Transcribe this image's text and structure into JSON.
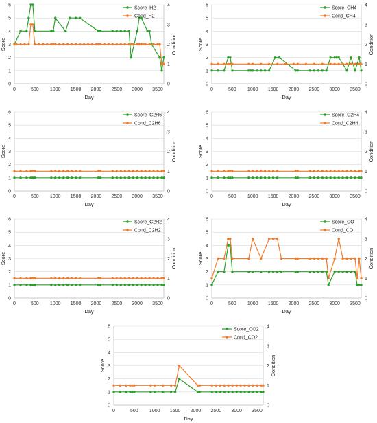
{
  "colors": {
    "score": "#2ca02c",
    "cond": "#f07b2a",
    "grid": "#d9d9d9",
    "axis": "#bfbfbf"
  },
  "chart_data": [
    {
      "type": "line",
      "xlabel": "Day",
      "ylabel": "Score",
      "y2label": "Condition",
      "xlim": [
        0,
        3650
      ],
      "xticks": [
        0,
        500,
        1000,
        1500,
        2000,
        2500,
        3000,
        3500
      ],
      "ylim": [
        0,
        6
      ],
      "y2lim": [
        0,
        4
      ],
      "legend": "top-right",
      "grid": true,
      "series": [
        {
          "name": "Score_H2",
          "axis": "left",
          "color": "#2ca02c",
          "x": [
            0,
            150,
            300,
            350,
            400,
            450,
            500,
            900,
            950,
            1000,
            1250,
            1350,
            1500,
            1600,
            2050,
            2100,
            2400,
            2500,
            2600,
            2700,
            2800,
            2850,
            3000,
            3050,
            3100,
            3250,
            3300,
            3350,
            3550,
            3600,
            3650
          ],
          "y": [
            3,
            4,
            4,
            5,
            6,
            6,
            4,
            4,
            4,
            5,
            4,
            5,
            5,
            5,
            4,
            4,
            4,
            4,
            4,
            4,
            4,
            2,
            4,
            5,
            5,
            4,
            4,
            3,
            2,
            1,
            2
          ]
        },
        {
          "name": "Cond_H2",
          "axis": "right",
          "color": "#f07b2a",
          "x": [
            0,
            50,
            150,
            250,
            350,
            400,
            450,
            500,
            600,
            700,
            800,
            900,
            950,
            1000,
            1100,
            1200,
            1300,
            1400,
            1500,
            1600,
            1700,
            1800,
            1900,
            2000,
            2050,
            2100,
            2200,
            2300,
            2400,
            2500,
            2600,
            2700,
            2800,
            2850,
            2900,
            3000,
            3050,
            3100,
            3150,
            3200,
            3300,
            3400,
            3500,
            3550,
            3600,
            3650
          ],
          "y": [
            2,
            2,
            2,
            2,
            2,
            3,
            3,
            2,
            2,
            2,
            2,
            2,
            2,
            2,
            2,
            2,
            2,
            2,
            2,
            2,
            2,
            2,
            2,
            2,
            2,
            2,
            2,
            2,
            2,
            2,
            2,
            2,
            2,
            2,
            2,
            2,
            2,
            2,
            2,
            2,
            2,
            2,
            2,
            2,
            1,
            1
          ]
        }
      ]
    },
    {
      "type": "line",
      "xlabel": "Day",
      "ylabel": "Score",
      "y2label": "Condition",
      "xlim": [
        0,
        3650
      ],
      "xticks": [
        0,
        500,
        1000,
        1500,
        2000,
        2500,
        3000,
        3500
      ],
      "ylim": [
        0,
        6
      ],
      "y2lim": [
        0,
        4
      ],
      "legend": "top-right",
      "grid": true,
      "series": [
        {
          "name": "Score_CH4",
          "axis": "left",
          "color": "#2ca02c",
          "x": [
            0,
            150,
            300,
            400,
            450,
            500,
            900,
            950,
            1000,
            1100,
            1200,
            1300,
            1400,
            1550,
            1650,
            2050,
            2100,
            2400,
            2500,
            2600,
            2700,
            2800,
            2900,
            3000,
            3050,
            3100,
            3200,
            3300,
            3400,
            3500,
            3550,
            3600,
            3650
          ],
          "y": [
            1,
            1,
            1,
            2,
            2,
            1,
            1,
            1,
            1,
            1,
            1,
            1,
            1,
            2,
            2,
            1,
            1,
            1,
            1,
            1,
            1,
            1,
            2,
            2,
            2,
            2,
            1.5,
            1,
            2,
            1,
            1.5,
            2,
            1
          ]
        },
        {
          "name": "Cond_CH4",
          "axis": "right",
          "color": "#f07b2a",
          "x": [
            0,
            150,
            300,
            400,
            450,
            500,
            900,
            1000,
            1200,
            1400,
            1600,
            1800,
            2000,
            2100,
            2300,
            2500,
            2700,
            2900,
            3000,
            3100,
            3200,
            3300,
            3400,
            3500,
            3600,
            3650
          ],
          "y": [
            1,
            1,
            1,
            1,
            1,
            1,
            1,
            1,
            1,
            1,
            1,
            1,
            1,
            1,
            1,
            1,
            1,
            1,
            1,
            1,
            1,
            1,
            1,
            1,
            1,
            1
          ]
        }
      ]
    },
    {
      "type": "line",
      "xlabel": "Day",
      "ylabel": "Score",
      "y2label": "Condition",
      "xlim": [
        0,
        3650
      ],
      "xticks": [
        0,
        500,
        1000,
        1500,
        2000,
        2500,
        3000,
        3500
      ],
      "ylim": [
        0,
        6
      ],
      "y2lim": [
        0,
        4
      ],
      "legend": "top-right",
      "grid": true,
      "series": [
        {
          "name": "Score_C2H6",
          "axis": "left",
          "color": "#2ca02c",
          "x": [
            0,
            150,
            300,
            400,
            450,
            500,
            900,
            1000,
            1100,
            1200,
            1300,
            1400,
            1500,
            1600,
            2050,
            2100,
            2400,
            2500,
            2600,
            2700,
            2800,
            2900,
            3000,
            3100,
            3200,
            3300,
            3400,
            3500,
            3600,
            3650
          ],
          "y": [
            1,
            1,
            1,
            1,
            1,
            1,
            1,
            1,
            1,
            1,
            1,
            1,
            1,
            1,
            1,
            1,
            1,
            1,
            1,
            1,
            1,
            1,
            1,
            1,
            1,
            1,
            1,
            1,
            1,
            1
          ]
        },
        {
          "name": "Cond_C2H6",
          "axis": "right",
          "color": "#f07b2a",
          "x": [
            0,
            150,
            300,
            400,
            450,
            500,
            900,
            1000,
            1100,
            1200,
            1300,
            1400,
            1500,
            1600,
            2050,
            2100,
            2400,
            2500,
            2600,
            2700,
            2800,
            2900,
            3000,
            3100,
            3200,
            3300,
            3400,
            3500,
            3600,
            3650
          ],
          "y": [
            1,
            1,
            1,
            1,
            1,
            1,
            1,
            1,
            1,
            1,
            1,
            1,
            1,
            1,
            1,
            1,
            1,
            1,
            1,
            1,
            1,
            1,
            1,
            1,
            1,
            1,
            1,
            1,
            1,
            1
          ]
        }
      ]
    },
    {
      "type": "line",
      "xlabel": "Day",
      "ylabel": "Score",
      "y2label": "Condition",
      "xlim": [
        0,
        3650
      ],
      "xticks": [
        0,
        500,
        1000,
        1500,
        2000,
        2500,
        3000,
        3500
      ],
      "ylim": [
        0,
        6
      ],
      "y2lim": [
        0,
        4
      ],
      "legend": "top-right",
      "grid": true,
      "series": [
        {
          "name": "Score_C2H4",
          "axis": "left",
          "color": "#2ca02c",
          "x": [
            0,
            150,
            300,
            400,
            450,
            500,
            900,
            1000,
            1100,
            1200,
            1300,
            1400,
            1500,
            1600,
            2050,
            2100,
            2400,
            2500,
            2600,
            2700,
            2800,
            2900,
            3000,
            3100,
            3200,
            3300,
            3400,
            3500,
            3600,
            3650
          ],
          "y": [
            1,
            1,
            1,
            1,
            1,
            1,
            1,
            1,
            1,
            1,
            1,
            1,
            1,
            1,
            1,
            1,
            1,
            1,
            1,
            1,
            1,
            1,
            1,
            1,
            1,
            1,
            1,
            1,
            1,
            1
          ]
        },
        {
          "name": "Cond_C2H4",
          "axis": "right",
          "color": "#f07b2a",
          "x": [
            0,
            150,
            300,
            400,
            450,
            500,
            900,
            1000,
            1100,
            1200,
            1300,
            1400,
            1500,
            1600,
            2050,
            2100,
            2400,
            2500,
            2600,
            2700,
            2800,
            2900,
            3000,
            3100,
            3200,
            3300,
            3400,
            3500,
            3600,
            3650
          ],
          "y": [
            1,
            1,
            1,
            1,
            1,
            1,
            1,
            1,
            1,
            1,
            1,
            1,
            1,
            1,
            1,
            1,
            1,
            1,
            1,
            1,
            1,
            1,
            1,
            1,
            1,
            1,
            1,
            1,
            1,
            1
          ]
        }
      ]
    },
    {
      "type": "line",
      "xlabel": "Day",
      "ylabel": "Score",
      "y2label": "Condition",
      "xlim": [
        0,
        3650
      ],
      "xticks": [
        0,
        500,
        1000,
        1500,
        2000,
        2500,
        3000,
        3500
      ],
      "ylim": [
        0,
        6
      ],
      "y2lim": [
        0,
        4
      ],
      "legend": "top-right",
      "grid": true,
      "series": [
        {
          "name": "Score_C2H2",
          "axis": "left",
          "color": "#2ca02c",
          "x": [
            0,
            150,
            300,
            400,
            450,
            500,
            900,
            1000,
            1100,
            1200,
            1300,
            1400,
            1500,
            1600,
            2050,
            2100,
            2400,
            2500,
            2600,
            2700,
            2800,
            2900,
            3000,
            3100,
            3200,
            3300,
            3400,
            3500,
            3600,
            3650
          ],
          "y": [
            1,
            1,
            1,
            1,
            1,
            1,
            1,
            1,
            1,
            1,
            1,
            1,
            1,
            1,
            1,
            1,
            1,
            1,
            1,
            1,
            1,
            1,
            1,
            1,
            1,
            1,
            1,
            1,
            1,
            1
          ]
        },
        {
          "name": "Cond_C2H2",
          "axis": "right",
          "color": "#f07b2a",
          "x": [
            0,
            150,
            300,
            400,
            450,
            500,
            900,
            1000,
            1100,
            1200,
            1300,
            1400,
            1500,
            1600,
            2050,
            2100,
            2400,
            2500,
            2600,
            2700,
            2800,
            2900,
            3000,
            3100,
            3200,
            3300,
            3400,
            3500,
            3600,
            3650
          ],
          "y": [
            1,
            1,
            1,
            1,
            1,
            1,
            1,
            1,
            1,
            1,
            1,
            1,
            1,
            1,
            1,
            1,
            1,
            1,
            1,
            1,
            1,
            1,
            1,
            1,
            1,
            1,
            1,
            1,
            1,
            1
          ]
        }
      ]
    },
    {
      "type": "line",
      "xlabel": "Day",
      "ylabel": "Score",
      "y2label": "Condition",
      "xlim": [
        0,
        3650
      ],
      "xticks": [
        0,
        500,
        1000,
        1500,
        2000,
        2500,
        3000,
        3500
      ],
      "ylim": [
        0,
        6
      ],
      "y2lim": [
        0,
        4
      ],
      "legend": "top-right",
      "grid": true,
      "series": [
        {
          "name": "Score_CO",
          "axis": "left",
          "color": "#2ca02c",
          "x": [
            0,
            150,
            300,
            400,
            450,
            500,
            900,
            1000,
            1200,
            1400,
            1500,
            1600,
            1700,
            2050,
            2100,
            2400,
            2500,
            2600,
            2700,
            2800,
            2850,
            3000,
            3100,
            3200,
            3300,
            3400,
            3500,
            3550,
            3600,
            3650
          ],
          "y": [
            1,
            2,
            2,
            4,
            4,
            2,
            2,
            2,
            2,
            2,
            2,
            2,
            2,
            2,
            2,
            2,
            2,
            2,
            2,
            2,
            1,
            2,
            2,
            2,
            2,
            2,
            2,
            1,
            1,
            1
          ]
        },
        {
          "name": "Cond_CO",
          "axis": "right",
          "color": "#f07b2a",
          "x": [
            0,
            150,
            300,
            400,
            450,
            500,
            900,
            1000,
            1200,
            1400,
            1500,
            1600,
            1700,
            2050,
            2100,
            2400,
            2500,
            2600,
            2700,
            2800,
            2850,
            3000,
            3100,
            3200,
            3300,
            3400,
            3500,
            3550,
            3600,
            3650
          ],
          "y": [
            1,
            2,
            2,
            3,
            3,
            2,
            2,
            3,
            2,
            3,
            3,
            3,
            2,
            2,
            2,
            2,
            2,
            2,
            2,
            2,
            1,
            2,
            3,
            2,
            2,
            2,
            2,
            1,
            2,
            1
          ]
        }
      ]
    },
    {
      "type": "line",
      "xlabel": "Day",
      "ylabel": "Score",
      "y2label": "Condition",
      "xlim": [
        0,
        3650
      ],
      "xticks": [
        0,
        500,
        1000,
        1500,
        2000,
        2500,
        3000,
        3500
      ],
      "ylim": [
        0,
        6
      ],
      "y2lim": [
        0,
        4
      ],
      "legend": "top-right",
      "grid": true,
      "series": [
        {
          "name": "Score_CO2",
          "axis": "left",
          "color": "#2ca02c",
          "x": [
            0,
            150,
            300,
            400,
            450,
            500,
            900,
            1000,
            1200,
            1400,
            1500,
            1600,
            2050,
            2100,
            2400,
            2500,
            2600,
            2700,
            2800,
            2900,
            3000,
            3100,
            3200,
            3300,
            3400,
            3500,
            3600,
            3650
          ],
          "y": [
            1,
            1,
            1,
            1,
            1,
            1,
            1,
            1,
            1,
            1,
            1,
            2,
            1,
            1,
            1,
            1,
            1,
            1,
            1,
            1,
            1,
            1,
            1,
            1,
            1,
            1,
            1,
            1
          ]
        },
        {
          "name": "Cond_CO2",
          "axis": "right",
          "color": "#f07b2a",
          "x": [
            0,
            150,
            300,
            400,
            450,
            500,
            900,
            1000,
            1200,
            1400,
            1500,
            1600,
            2050,
            2100,
            2400,
            2500,
            2600,
            2700,
            2800,
            2900,
            3000,
            3100,
            3200,
            3300,
            3400,
            3500,
            3600,
            3650
          ],
          "y": [
            1,
            1,
            1,
            1,
            1,
            1,
            1,
            1,
            1,
            1,
            1,
            2,
            1,
            1,
            1,
            1,
            1,
            1,
            1,
            1,
            1,
            1,
            1,
            1,
            1,
            1,
            1,
            1
          ]
        }
      ]
    }
  ]
}
